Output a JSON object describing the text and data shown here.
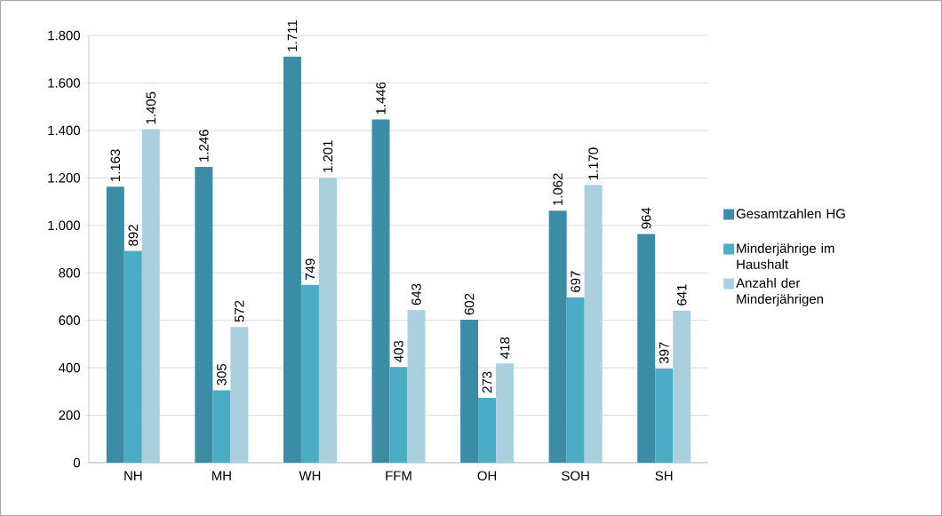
{
  "chart_data": {
    "type": "bar",
    "categories": [
      "NH",
      "MH",
      "WH",
      "FFM",
      "OH",
      "SOH",
      "SH"
    ],
    "series": [
      {
        "name": "Gesamtzahlen HG",
        "color": "#3b8ca5",
        "values": [
          1163,
          1246,
          1711,
          1446,
          602,
          1062,
          964
        ],
        "value_labels": [
          "1.163",
          "1.246",
          "1.711",
          "1.446",
          "602",
          "1.062",
          "964"
        ]
      },
      {
        "name": "Minderjährige im Haushalt",
        "color": "#4bacc6",
        "values": [
          892,
          305,
          749,
          403,
          273,
          697,
          397
        ],
        "value_labels": [
          "892",
          "305",
          "749",
          "403",
          "273",
          "697",
          "397"
        ]
      },
      {
        "name": "Anzahl der Minderjährigen",
        "color": "#a9d1dd",
        "values": [
          1405,
          572,
          1201,
          643,
          418,
          1170,
          641
        ],
        "value_labels": [
          "1.405",
          "572",
          "1.201",
          "643",
          "418",
          "1.170",
          "641"
        ]
      }
    ],
    "ylim": [
      0,
      1800
    ],
    "yticks": [
      0,
      200,
      400,
      600,
      800,
      {
        "value": 1000,
        "label": "1.000"
      },
      {
        "value": 1200,
        "label": "1.200"
      },
      {
        "value": 1400,
        "label": "1.400"
      },
      {
        "value": 1600,
        "label": "1.600"
      },
      {
        "value": 1800,
        "label": "1.800"
      }
    ],
    "grid": "y",
    "legend": "right"
  }
}
